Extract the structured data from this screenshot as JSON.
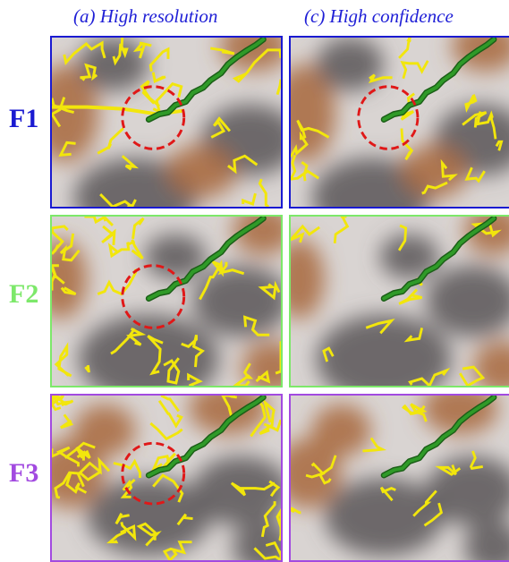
{
  "columns": [
    {
      "label": "(a) High resolution"
    },
    {
      "label": "(c) High confidence"
    }
  ],
  "rows": [
    {
      "label": "F1",
      "color": "#1a1ad1"
    },
    {
      "label": "F2",
      "color": "#7de86a"
    },
    {
      "label": "F3",
      "color": "#a24ae0"
    }
  ],
  "colors": {
    "boundary": "#f2e60c",
    "trace": "#2f9a28",
    "highlight_circle": "#e01818",
    "terrain_light": "#d9d4d2",
    "terrain_dark": "#5b5658",
    "terrain_brown": "#a8693c"
  }
}
